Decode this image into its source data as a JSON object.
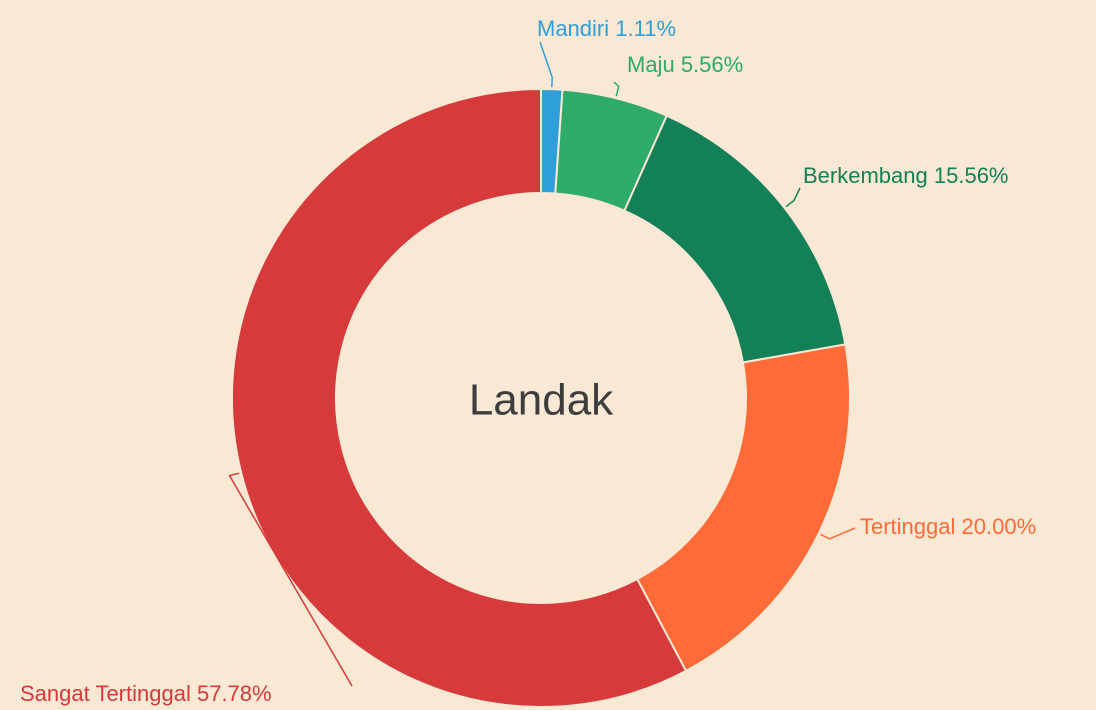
{
  "chart_data": {
    "type": "donut",
    "title": "Landak",
    "categories": [
      "Mandiri",
      "Maju",
      "Berkembang",
      "Tertinggal",
      "Sangat Tertinggal"
    ],
    "values": [
      1.11,
      5.56,
      15.56,
      20,
      57.78
    ],
    "value_labels": [
      "1.11%",
      "5.56%",
      "15.56%",
      "20.00%",
      "57.78%"
    ],
    "colors": [
      "#2e9fd8",
      "#2eaa6a",
      "#138057",
      "#ff6b38",
      "#d63a3a"
    ]
  }
}
